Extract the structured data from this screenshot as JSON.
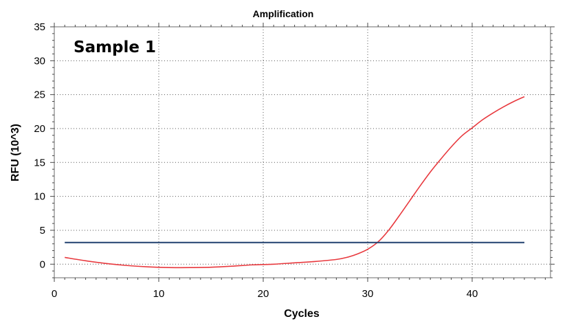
{
  "chart_data": {
    "type": "line",
    "title": "Amplification",
    "xlabel": "Cycles",
    "ylabel": "RFU (10^3)",
    "annotation": "Sample 1",
    "xlim": [
      0,
      47.5
    ],
    "ylim": [
      -2,
      35
    ],
    "x_ticks": [
      0,
      10,
      20,
      30,
      40
    ],
    "y_ticks": [
      0,
      5,
      10,
      15,
      20,
      25,
      30,
      35
    ],
    "grid": true,
    "colors": {
      "amplification": "#e8383d",
      "threshold": "#1f3f6e"
    },
    "series": [
      {
        "x": [
          1,
          3,
          5,
          7,
          9,
          11,
          13,
          15,
          17,
          19,
          21,
          23,
          25,
          27,
          28,
          29,
          30,
          31,
          32,
          33,
          34,
          35,
          36,
          37,
          38,
          39,
          40,
          41,
          42,
          43,
          44,
          45
        ],
        "values": [
          1.0,
          0.5,
          0.1,
          -0.2,
          -0.4,
          -0.5,
          -0.5,
          -0.45,
          -0.3,
          -0.1,
          0.0,
          0.2,
          0.4,
          0.7,
          1.0,
          1.5,
          2.2,
          3.3,
          5.0,
          7.1,
          9.3,
          11.5,
          13.6,
          15.5,
          17.3,
          18.9,
          20.1,
          21.3,
          22.3,
          23.2,
          24.0,
          24.7
        ]
      },
      {
        "x": [
          1,
          45
        ],
        "values": [
          3.2,
          3.2
        ]
      }
    ]
  }
}
